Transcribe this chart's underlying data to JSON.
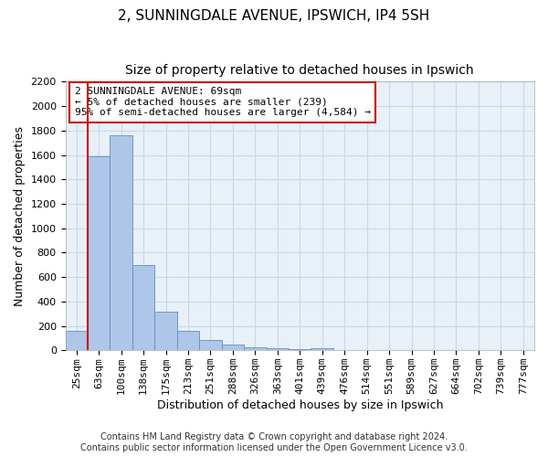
{
  "title": "2, SUNNINGDALE AVENUE, IPSWICH, IP4 5SH",
  "subtitle": "Size of property relative to detached houses in Ipswich",
  "xlabel": "Distribution of detached houses by size in Ipswich",
  "ylabel": "Number of detached properties",
  "categories": [
    "25sqm",
    "63sqm",
    "100sqm",
    "138sqm",
    "175sqm",
    "213sqm",
    "251sqm",
    "288sqm",
    "326sqm",
    "363sqm",
    "401sqm",
    "439sqm",
    "476sqm",
    "514sqm",
    "551sqm",
    "589sqm",
    "627sqm",
    "664sqm",
    "702sqm",
    "739sqm",
    "777sqm"
  ],
  "bar_heights": [
    160,
    1590,
    1760,
    700,
    315,
    160,
    85,
    45,
    25,
    15,
    10,
    14,
    0,
    0,
    0,
    0,
    0,
    0,
    0,
    0,
    0
  ],
  "bar_color": "#aec6e8",
  "bar_edge_color": "#5a8fc2",
  "vline_color": "#cc0000",
  "annotation_line1": "2 SUNNINGDALE AVENUE: 69sqm",
  "annotation_line2": "← 5% of detached houses are smaller (239)",
  "annotation_line3": "95% of semi-detached houses are larger (4,584) →",
  "annotation_box_color": "#ffffff",
  "annotation_box_edge": "#cc0000",
  "ylim": [
    0,
    2200
  ],
  "yticks": [
    0,
    200,
    400,
    600,
    800,
    1000,
    1200,
    1400,
    1600,
    1800,
    2000,
    2200
  ],
  "footer_line1": "Contains HM Land Registry data © Crown copyright and database right 2024.",
  "footer_line2": "Contains public sector information licensed under the Open Government Licence v3.0.",
  "bg_color": "#ffffff",
  "plot_bg_color": "#e8f0f8",
  "grid_color": "#c8d8e8",
  "title_fontsize": 11,
  "subtitle_fontsize": 10,
  "axis_label_fontsize": 9,
  "tick_fontsize": 8,
  "annotation_fontsize": 8,
  "footer_fontsize": 7
}
